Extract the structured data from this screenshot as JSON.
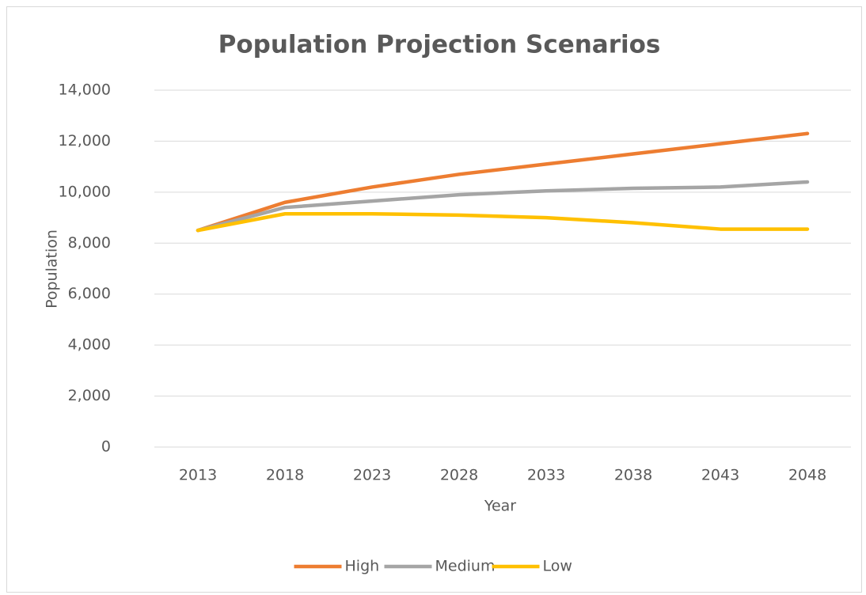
{
  "chart_data": {
    "type": "line",
    "title": "Population Projection Scenarios",
    "x_label": "Year",
    "y_label": "Population",
    "categories": [
      "2013",
      "2018",
      "2023",
      "2028",
      "2033",
      "2038",
      "2043",
      "2048"
    ],
    "series": [
      {
        "name": "High",
        "color": "#ed7d31",
        "values": [
          8500,
          9600,
          10200,
          10700,
          11100,
          11500,
          11900,
          12300
        ]
      },
      {
        "name": "Medium",
        "color": "#a5a5a5",
        "values": [
          8500,
          9400,
          9650,
          9900,
          10050,
          10150,
          10200,
          10400
        ]
      },
      {
        "name": "Low",
        "color": "#ffc000",
        "values": [
          8500,
          9150,
          9150,
          9100,
          9000,
          8800,
          8550,
          8550
        ]
      }
    ],
    "ylim": [
      0,
      14000
    ],
    "yticks": [
      0,
      {
        "value": 2000,
        "label": "2,000"
      },
      {
        "value": 4000,
        "label": "4,000"
      },
      {
        "value": 6000,
        "label": "6,000"
      },
      {
        "value": 8000,
        "label": "8,000"
      },
      {
        "value": 10000,
        "label": "10,000"
      },
      {
        "value": 12000,
        "label": "12,000"
      },
      {
        "value": 14000,
        "label": "14,000"
      }
    ],
    "grid": true,
    "legend": "bottom"
  }
}
